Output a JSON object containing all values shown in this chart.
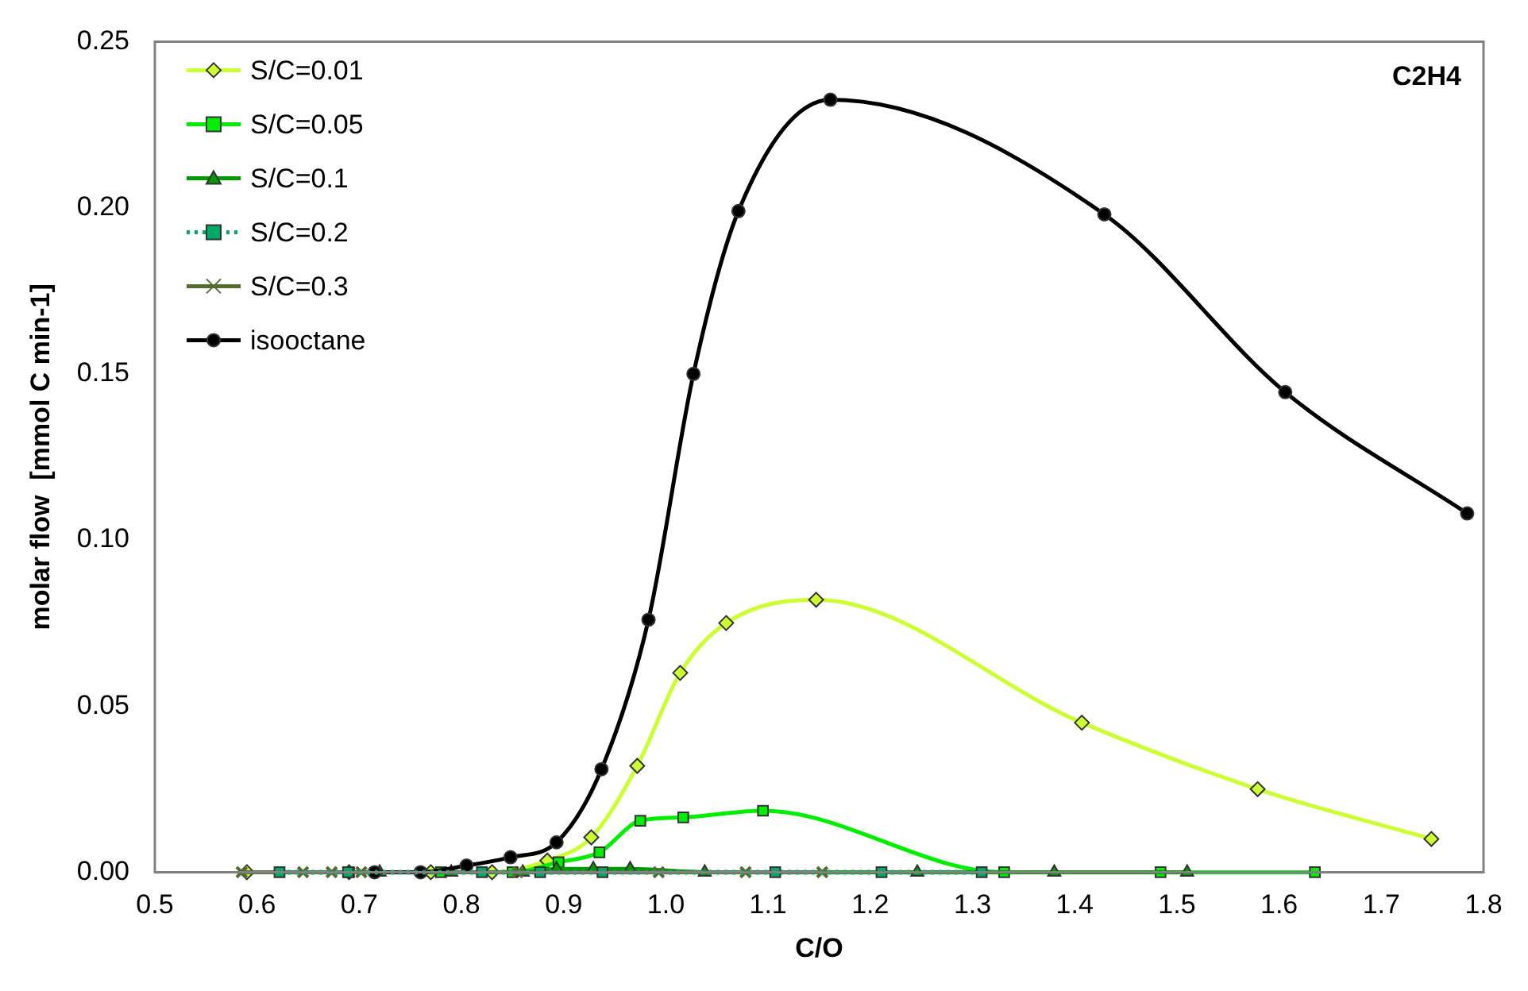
{
  "chart_data": {
    "type": "line",
    "xlabel": "C/O",
    "ylabel": "molar flow  [mmol C min-1]",
    "annotations": [
      "C2H4"
    ],
    "xlim": [
      0.5,
      1.8
    ],
    "xticks": [
      0.5,
      0.6,
      0.7,
      0.8,
      0.9,
      {
        "value": 1,
        "label": "1.0"
      },
      1.1,
      1.2,
      1.3,
      1.4,
      1.5,
      1.6,
      1.7,
      1.8
    ],
    "ylim": [
      0,
      0.25
    ],
    "yticks": [
      {
        "value": 0,
        "label": "0.00"
      },
      {
        "value": 0.05,
        "label": "0.05"
      },
      {
        "value": 0.1,
        "label": "0.10"
      },
      {
        "value": 0.15,
        "label": "0.15"
      },
      {
        "value": 0.2,
        "label": "0.20"
      },
      {
        "value": 0.25,
        "label": "0.25"
      }
    ],
    "grid": false,
    "legend": "top left",
    "line_style": "solid",
    "series": [
      {
        "name": "S/C=0.01",
        "color": "#ccff33",
        "marker": "diamond",
        "x": [
          0.59,
          0.69,
          0.77,
          0.83,
          0.884,
          0.927,
          0.972,
          1.014,
          1.059,
          1.147,
          1.407,
          1.579,
          1.749
        ],
        "values": [
          0,
          0,
          0,
          0,
          0.0035,
          0.0105,
          0.032,
          0.06,
          0.075,
          0.082,
          0.045,
          0.025,
          0.01
        ]
      },
      {
        "name": "S/C=0.05",
        "color": "#00ee00",
        "marker": "square",
        "x": [
          0.69,
          0.78,
          0.85,
          0.895,
          0.935,
          0.975,
          1.017,
          1.095,
          1.331,
          1.484,
          1.635
        ],
        "values": [
          0,
          0,
          0,
          0.003,
          0.006,
          0.0155,
          0.0165,
          0.0185,
          0,
          0,
          0
        ]
      },
      {
        "name": "S/C=0.1",
        "color": "#009900",
        "marker": "triangle",
        "x": [
          0.72,
          0.79,
          0.86,
          0.893,
          0.929,
          0.965,
          1.038,
          1.246,
          1.38,
          1.51
        ],
        "values": [
          0,
          0,
          0,
          0.001,
          0.001,
          0.001,
          0,
          0,
          0,
          0
        ]
      },
      {
        "name": "S/C=0.2",
        "color": "#00aa66",
        "marker": "square",
        "line_style": "dotted",
        "x": [
          0.622,
          0.689,
          0.82,
          0.877,
          0.938,
          1.107,
          1.211,
          1.309
        ],
        "values": [
          0,
          0,
          0,
          0,
          0,
          0,
          0,
          0
        ]
      },
      {
        "name": "S/C=0.3",
        "color": "#556b2f",
        "marker": "cross",
        "x": [
          0.585,
          0.645,
          0.673,
          0.702,
          0.855,
          0.993,
          1.078,
          1.153
        ],
        "values": [
          0,
          0,
          0,
          0,
          0,
          0,
          0,
          0
        ]
      },
      {
        "name": "isooctane",
        "color": "#000000",
        "marker": "circle",
        "x": [
          0.715,
          0.76,
          0.805,
          0.848,
          0.893,
          0.937,
          0.983,
          1.027,
          1.071,
          1.161,
          1.429,
          1.606,
          1.784
        ],
        "values": [
          0,
          0,
          0.002,
          0.0045,
          0.009,
          0.031,
          0.076,
          0.15,
          0.199,
          0.2325,
          0.198,
          0.1445,
          0.108
        ]
      }
    ]
  }
}
